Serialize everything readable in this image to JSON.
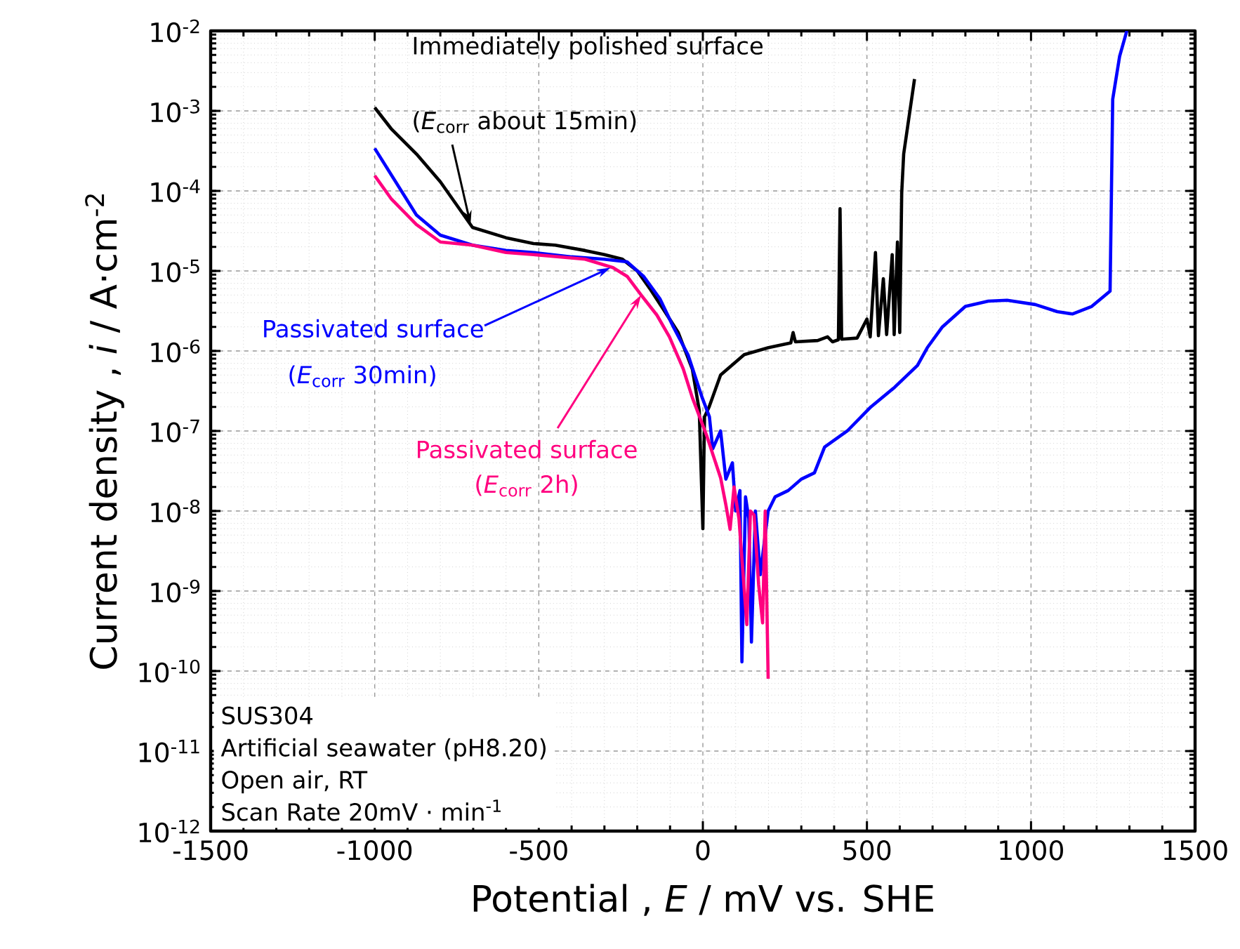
{
  "chart_data": {
    "type": "line",
    "xlabel": "Potential , *E* / mV vs. SHE",
    "ylabel": "Current density , *i* / A·cm$^{-2}$",
    "log": "y",
    "grid": true,
    "marker": "none",
    "line_style": "solid",
    "xlim": [
      -1500,
      1500
    ],
    "xticks": [
      -1500,
      -1000,
      -500,
      0,
      500,
      1000,
      1500
    ],
    "ylim": [
      1e-12,
      0.01
    ],
    "yticks": [
      {
        "value": 1e-12,
        "label": "10$^{-12}$"
      },
      {
        "value": 1e-11,
        "label": "10$^{-11}$"
      },
      {
        "value": 1e-10,
        "label": "10$^{-10}$"
      },
      {
        "value": 1e-09,
        "label": "10$^{-9}$"
      },
      {
        "value": 1e-08,
        "label": "10$^{-8}$"
      },
      {
        "value": 1e-07,
        "label": "10$^{-7}$"
      },
      {
        "value": 1e-06,
        "label": "10$^{-6}$"
      },
      {
        "value": 1e-05,
        "label": "10$^{-5}$"
      },
      {
        "value": 0.0001,
        "label": "10$^{-4}$"
      },
      {
        "value": 0.001,
        "label": "10$^{-3}$"
      },
      {
        "value": 0.01,
        "label": "10$^{-2}$"
      }
    ],
    "series": [
      {
        "color": "#000000",
        "x": [
          -1000,
          -950,
          -873,
          -800,
          -702,
          -600,
          -516,
          -450,
          -359,
          -300,
          -245,
          -200,
          -159,
          -120,
          -75,
          -32,
          -11,
          0,
          5,
          19,
          54,
          126,
          200,
          268,
          275,
          282,
          350,
          380,
          395,
          413,
          418,
          423,
          470,
          500,
          510,
          526,
          535,
          550,
          560,
          577,
          583,
          593,
          600,
          606,
          612,
          645
        ],
        "values": [
          0.0011,
          0.0006,
          0.00029,
          0.00013,
          3.5e-05,
          2.6e-05,
          2.2e-05,
          2.1e-05,
          1.8e-05,
          1.6e-05,
          1.4e-05,
          1e-05,
          5.8e-06,
          3.3e-06,
          1.7e-06,
          5.9e-07,
          1.8e-07,
          6e-09,
          1.5e-07,
          2e-07,
          5e-07,
          9e-07,
          1.1e-06,
          1.26e-06,
          1.7e-06,
          1.3e-06,
          1.35e-06,
          1.5e-06,
          1.3e-06,
          1.38e-06,
          6e-05,
          1.4e-06,
          1.45e-06,
          2.5e-06,
          1.5e-06,
          1.7e-05,
          1.55e-06,
          8e-06,
          1.6e-06,
          1.6e-05,
          1.6e-06,
          2.3e-05,
          1.7e-06,
          9.5e-05,
          0.00029,
          0.0025
        ]
      },
      {
        "color": "#0000ff",
        "x": [
          -1000,
          -950,
          -873,
          -800,
          -702,
          -600,
          -516,
          -400,
          -302,
          -231,
          -180,
          -131,
          -90,
          -45,
          -2,
          20,
          30,
          54,
          70,
          90,
          100,
          113,
          119,
          130,
          140,
          148,
          160,
          175,
          199,
          220,
          260,
          300,
          340,
          371,
          440,
          512,
          584,
          654,
          684,
          730,
          800,
          870,
          927,
          1013,
          1080,
          1126,
          1185,
          1241,
          1249,
          1270,
          1292
        ],
        "values": [
          0.00034,
          0.00016,
          5e-05,
          2.8e-05,
          2.1e-05,
          1.8e-05,
          1.7e-05,
          1.5e-05,
          1.4e-05,
          1.3e-05,
          8.5e-06,
          4.5e-06,
          2e-06,
          8.9e-07,
          2.6e-07,
          1.5e-07,
          6e-08,
          1e-07,
          2.5e-08,
          4e-08,
          1e-08,
          1.8e-08,
          1.3e-10,
          1.5e-08,
          8e-09,
          2.3e-10,
          1e-08,
          1.6e-09,
          1e-08,
          1.5e-08,
          1.8e-08,
          2.5e-08,
          3e-08,
          6.3e-08,
          1e-07,
          2e-07,
          3.5e-07,
          6.6e-07,
          1.1e-06,
          2e-06,
          3.6e-06,
          4.2e-06,
          4.3e-06,
          3.8e-06,
          3.1e-06,
          2.9e-06,
          3.6e-06,
          5.6e-06,
          0.0014,
          0.0048,
          0.01
        ]
      },
      {
        "color": "#ff007f",
        "x": [
          -1000,
          -950,
          -873,
          -800,
          -702,
          -600,
          -516,
          -359,
          -274,
          -230,
          -188,
          -140,
          -102,
          -60,
          -32,
          11,
          54,
          70,
          83,
          95,
          110,
          134,
          145,
          156,
          170,
          182,
          190,
          199
        ],
        "values": [
          0.000155,
          8e-05,
          3.8e-05,
          2.3e-05,
          2.1e-05,
          1.7e-05,
          1.6e-05,
          1.4e-05,
          1.1e-05,
          8.5e-06,
          5e-06,
          2.8e-06,
          1.5e-06,
          6e-07,
          2.6e-07,
          8.9e-08,
          2.6e-08,
          1.2e-08,
          5.9e-09,
          2e-08,
          8e-09,
          3.8e-10,
          1e-08,
          8.9e-09,
          1.2e-09,
          4e-10,
          1e-08,
          8e-11
        ]
      }
    ],
    "annotations": [
      "Immediately polished surface",
      {
        "text": "(*E*$_{corr}$ about 15min)",
        "x": -708,
        "y": 3.8e-05
      },
      {
        "text": "Passivated surface",
        "x": -281,
        "y": 1.1e-05
      },
      "(*E*$_{corr}$ 30min)",
      {
        "text": "Passivated surface",
        "x": -188,
        "y": 5e-06
      },
      "(*E*$_{corr}$ 2h)",
      "SUS304",
      "Artificial seawater (pH8.20)",
      "Open air, RT",
      "Scan Rate 20mV · min$^{-1}$"
    ]
  }
}
